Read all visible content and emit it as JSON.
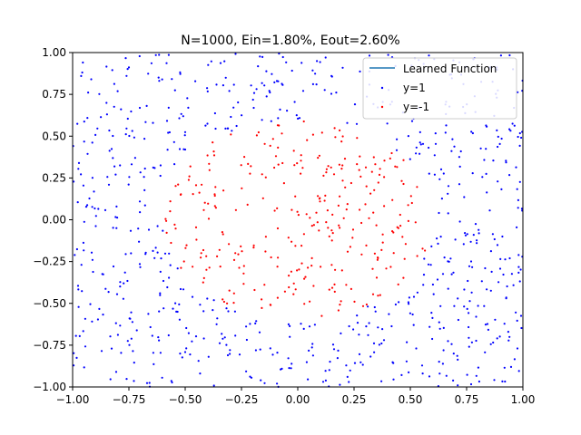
{
  "chart_data": {
    "type": "scatter",
    "title": "N=1000, Ein=1.80%, Eout=2.60%",
    "xlabel": "",
    "ylabel": "",
    "xlim": [
      -1.0,
      1.0
    ],
    "ylim": [
      -1.0,
      1.0
    ],
    "x_ticks": [
      "−1.00",
      "−0.75",
      "−0.50",
      "−0.25",
      "0.00",
      "0.25",
      "0.50",
      "0.75",
      "1.00"
    ],
    "y_ticks": [
      "−1.00",
      "−0.75",
      "−0.50",
      "−0.25",
      "0.00",
      "0.25",
      "0.50",
      "0.75",
      "1.00"
    ],
    "x_tick_values": [
      -1.0,
      -0.75,
      -0.5,
      -0.25,
      0.0,
      0.25,
      0.5,
      0.75,
      1.0
    ],
    "y_tick_values": [
      -1.0,
      -0.75,
      -0.5,
      -0.25,
      0.0,
      0.25,
      0.5,
      0.75,
      1.0
    ],
    "grid": false,
    "legend_position": "top-right",
    "n_points": 1000,
    "decision_boundary": "circle of radius ~0.6 centered at origin (points inside labeled y=-1, outside y=1)",
    "series": [
      {
        "name": "Learned Function",
        "kind": "line",
        "color": "#1f77b4",
        "values": []
      },
      {
        "name": "y=1",
        "kind": "scatter",
        "color": "#0000ff",
        "region": "outside circle r=0.6"
      },
      {
        "name": "y=-1",
        "kind": "scatter",
        "color": "#ff0000",
        "region": "inside circle r=0.6"
      }
    ]
  }
}
